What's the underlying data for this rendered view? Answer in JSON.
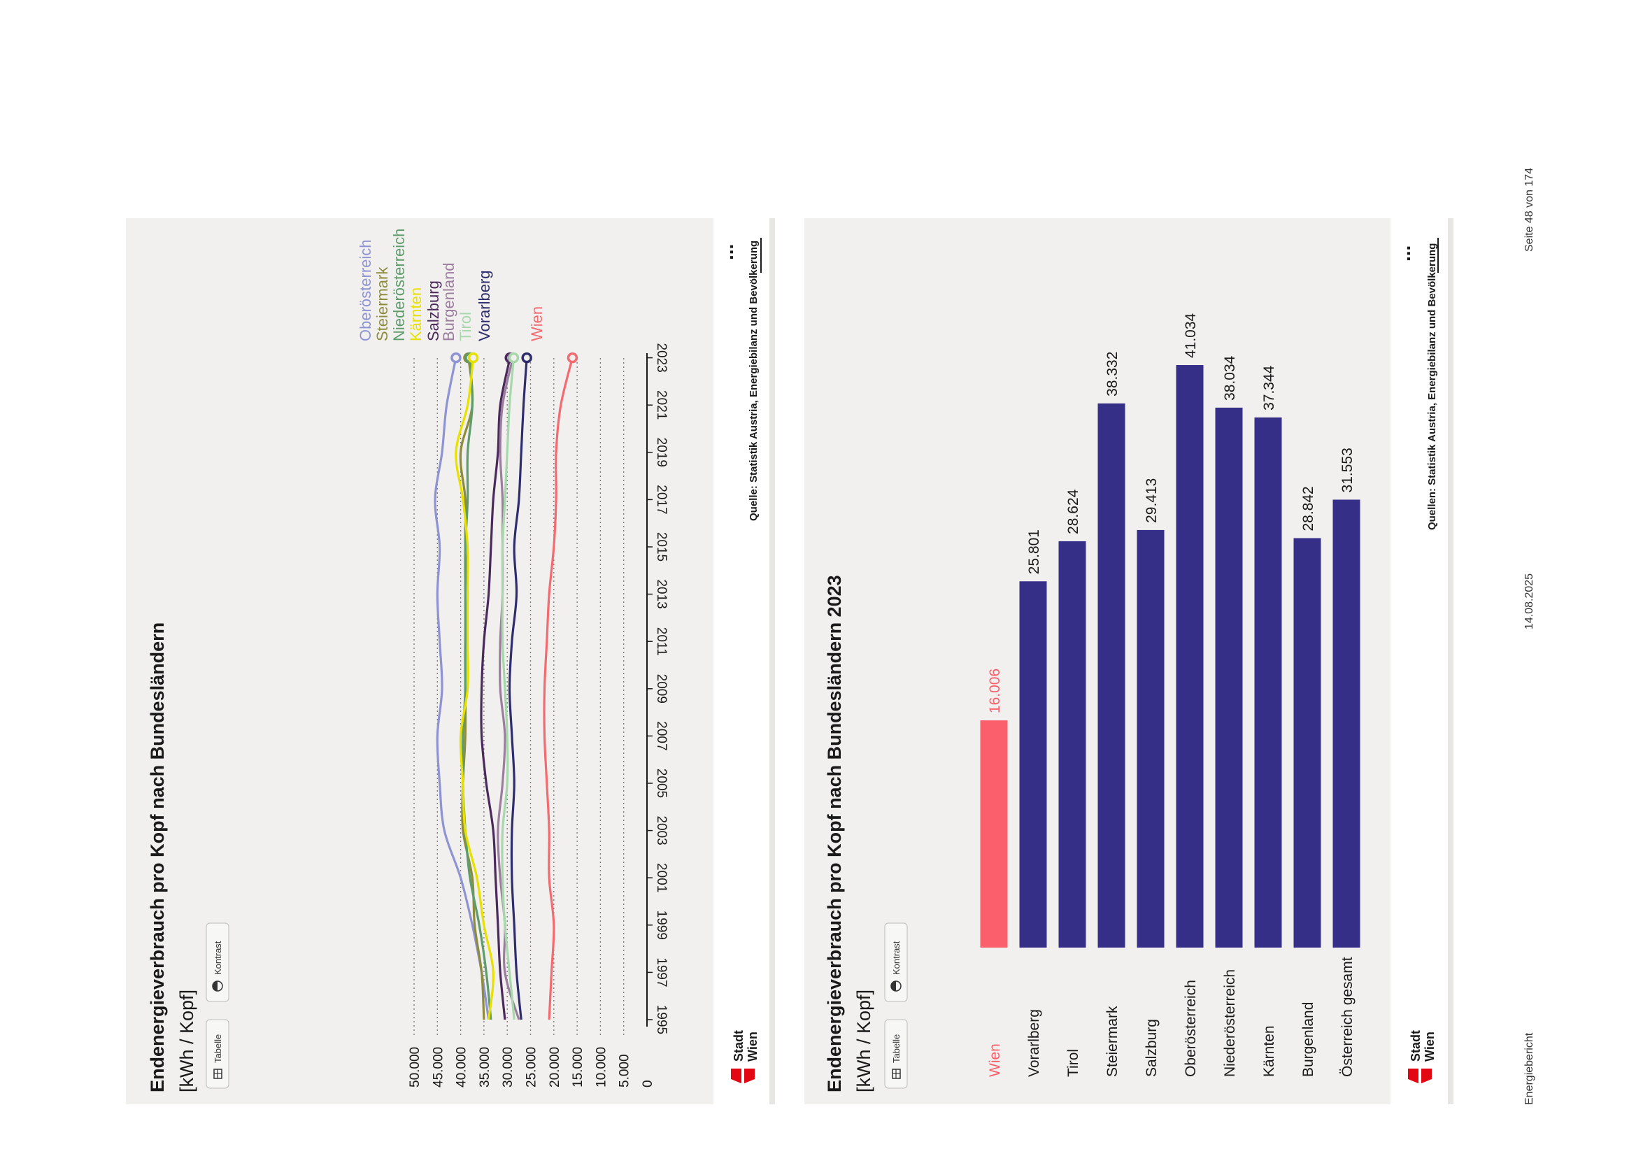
{
  "footer": {
    "document": "Energiebericht",
    "date": "14.08.2025",
    "page": "Seite 48 von 174"
  },
  "brand": {
    "name_line1": "Stadt",
    "name_line2": "Wien"
  },
  "controls": {
    "table_label": "Tabelle",
    "contrast_label": "Kontrast",
    "more_label": "..."
  },
  "colors": {
    "panel": "#f1f0ee",
    "navy": "#352f88",
    "wien": "#fb5f6c",
    "grid": "#777777"
  },
  "chart_data": [
    {
      "type": "line",
      "title": "Endenergieverbrauch pro Kopf nach Bundesländern",
      "unit": "[kWh / Kopf]",
      "source": "Quelle: Statistik Austria, Energiebilanz und Bevölkerung",
      "y_ticks": [
        "50.000",
        "45.000",
        "40.000",
        "35.000",
        "30.000",
        "25.000",
        "20.000",
        "15.000",
        "10.000",
        "5.000",
        "0"
      ],
      "ylim": [
        0,
        52000
      ],
      "x_ticks": [
        "1995",
        "1997",
        "1999",
        "2001",
        "2003",
        "2005",
        "2007",
        "2009",
        "2011",
        "2013",
        "2015",
        "2017",
        "2019",
        "2021",
        "2023"
      ],
      "x": [
        1995,
        1997,
        1999,
        2001,
        2003,
        2005,
        2007,
        2009,
        2011,
        2013,
        2015,
        2017,
        2019,
        2021,
        2023
      ],
      "series": [
        {
          "name": "Oberösterreich",
          "color": "#8e93d4",
          "values": [
            34000,
            35500,
            37500,
            40000,
            43500,
            44500,
            45000,
            44000,
            44500,
            45000,
            44500,
            45500,
            44000,
            43000,
            41000
          ]
        },
        {
          "name": "Steiermark",
          "color": "#8c8c3c",
          "values": [
            35000,
            35500,
            37000,
            37500,
            39500,
            39500,
            39000,
            39000,
            39000,
            38500,
            39000,
            39000,
            40000,
            37500,
            38300
          ]
        },
        {
          "name": "Niederösterreich",
          "color": "#5e9c6c",
          "values": [
            33500,
            34500,
            36000,
            38000,
            39000,
            39500,
            39500,
            39000,
            39000,
            39000,
            39000,
            38500,
            38500,
            37500,
            38000
          ]
        },
        {
          "name": "Kärnten",
          "color": "#e8e000",
          "values": [
            34000,
            33000,
            35000,
            36500,
            39000,
            39500,
            40000,
            38500,
            38500,
            38500,
            38500,
            39500,
            41000,
            38500,
            37300
          ]
        },
        {
          "name": "Salzburg",
          "color": "#4a2a5c",
          "values": [
            30500,
            31500,
            32000,
            32500,
            33000,
            34500,
            35500,
            35500,
            35000,
            34000,
            33500,
            33000,
            32000,
            31500,
            29400
          ]
        },
        {
          "name": "Burgenland",
          "color": "#9b7e9e",
          "values": [
            27500,
            30500,
            30500,
            31500,
            32000,
            31000,
            30500,
            31500,
            31500,
            31000,
            31000,
            31000,
            31500,
            31000,
            28800
          ]
        },
        {
          "name": "Tirol",
          "color": "#a6d8ac",
          "values": [
            28500,
            29500,
            30500,
            31000,
            31000,
            30000,
            30000,
            30500,
            31000,
            31000,
            31000,
            30500,
            30000,
            29500,
            28600
          ]
        },
        {
          "name": "Vorarlberg",
          "color": "#2e2e6e",
          "values": [
            27000,
            28000,
            28500,
            29000,
            29000,
            28500,
            29000,
            29500,
            29000,
            28000,
            28500,
            27500,
            27000,
            26500,
            25800
          ]
        },
        {
          "name": "Wien",
          "color": "#f36b70",
          "values": [
            21000,
            20500,
            20000,
            21000,
            21000,
            21500,
            22000,
            22000,
            21500,
            21000,
            20000,
            19500,
            19500,
            18500,
            16000
          ]
        }
      ]
    },
    {
      "type": "bar",
      "title": "Endenergieverbrauch pro Kopf nach Bundesländern 2023",
      "unit": "[kWh / Kopf]",
      "source": "Quellen: Statistik Austria, Energiebilanz und Bevölkerung",
      "categories": [
        "Wien",
        "Vorarlberg",
        "Tirol",
        "Steiermark",
        "Salzburg",
        "Oberösterreich",
        "Niederösterreich",
        "Kärnten",
        "Burgenland",
        "Österreich gesamt"
      ],
      "values": [
        16006,
        25801,
        28624,
        38332,
        29413,
        41034,
        38034,
        37344,
        28842,
        31553
      ],
      "value_labels": [
        "16.006",
        "25.801",
        "28.624",
        "38.332",
        "29.413",
        "41.034",
        "38.034",
        "37.344",
        "28.842",
        "31.553"
      ],
      "highlight": "Wien"
    }
  ]
}
